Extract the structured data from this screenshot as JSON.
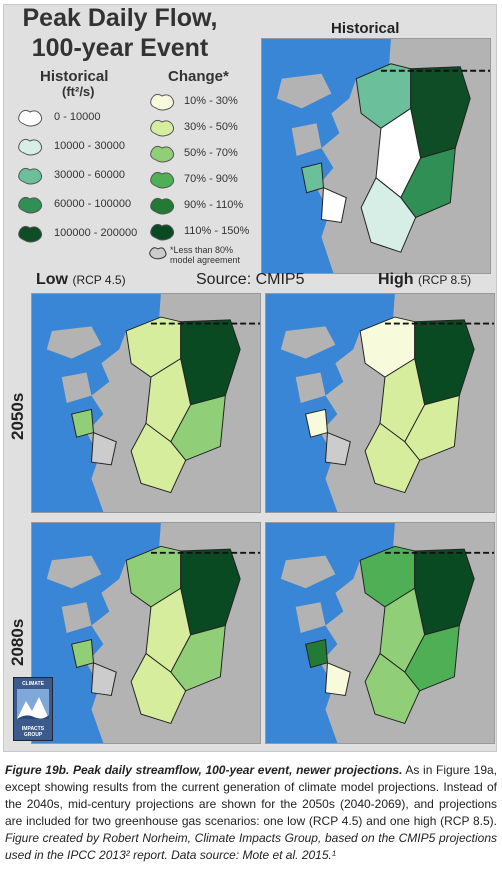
{
  "title": {
    "line1": "Peak Daily Flow,",
    "line2": "100-year Event"
  },
  "legend_historical": {
    "header": "Historical",
    "units": "(ft²/s)",
    "items": [
      {
        "label": "0 - 10000",
        "color": "#ffffff"
      },
      {
        "label": "10000 - 30000",
        "color": "#d6eee6"
      },
      {
        "label": "30000 - 60000",
        "color": "#6bbf9a"
      },
      {
        "label": "60000 - 100000",
        "color": "#2f8f54"
      },
      {
        "label": "100000 - 200000",
        "color": "#0e4d26"
      }
    ]
  },
  "legend_change": {
    "header": "Change*",
    "items": [
      {
        "label": "10% - 30%",
        "color": "#f7fbdc"
      },
      {
        "label": "30% - 50%",
        "color": "#d6ed9e"
      },
      {
        "label": "50% - 70%",
        "color": "#90cf78"
      },
      {
        "label": "70% - 90%",
        "color": "#4faf55"
      },
      {
        "label": "90% - 110%",
        "color": "#237a35"
      },
      {
        "label": "110% - 150%",
        "color": "#0a4a22"
      }
    ],
    "note_swatch_color": "#cccccc",
    "note": "*Less than 80% model agreement"
  },
  "maps": {
    "historical_label": "Historical",
    "water_color": "#3a86d6",
    "land_color": "#b3b3b3"
  },
  "columns": {
    "low_bold": "Low",
    "low_scn": "(RCP 4.5)",
    "source": "Source: CMIP5",
    "high_bold": "High",
    "high_scn": "(RCP 8.5)"
  },
  "rows": {
    "r1": "2050s",
    "r2": "2080s"
  },
  "logo": {
    "line1": "CLIMATE",
    "line2": "IMPACTS",
    "line3": "GROUP"
  },
  "caption": {
    "lead": "Figure 19b. Peak daily streamflow, 100-year event, newer projections.",
    "body": " As in Figure 19a, except showing results from the current generation of climate model projections. Instead of the 2040s, mid-century projections are shown for the 2050s (2040-2069), and projections are included for two greenhouse gas scenarios: one low (RCP 4.5) and one high (RCP 8.5). ",
    "credit": "Figure created by Robert Norheim, Climate Impacts Group, based on the CMIP5 projections used in the IPCC 2013² report. Data source: Mote et al. 2015.¹"
  }
}
